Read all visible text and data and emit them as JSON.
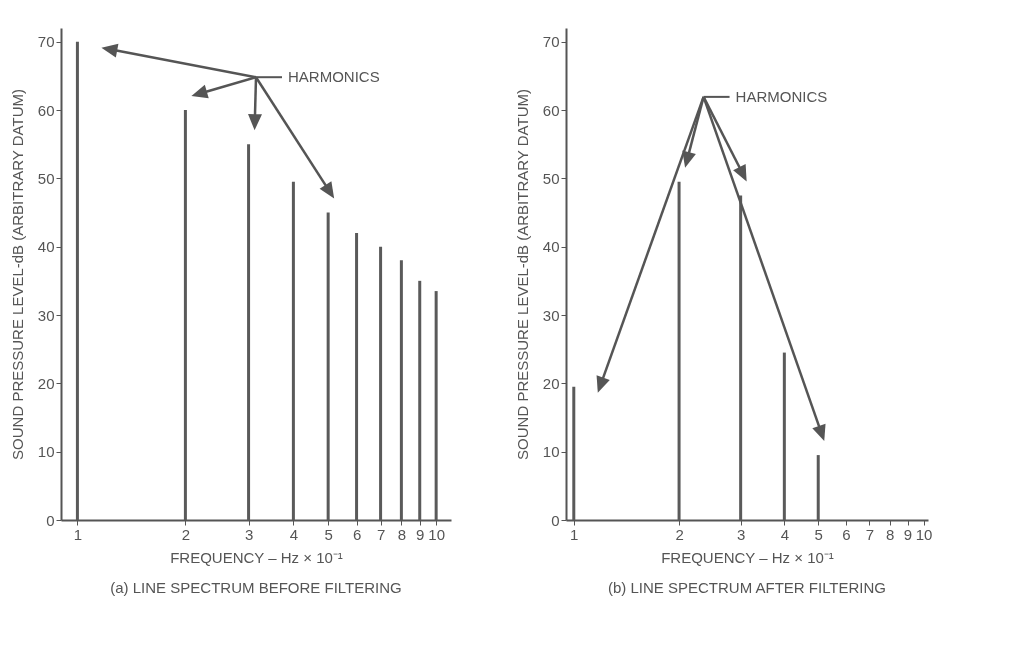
{
  "chart_data": [
    {
      "type": "bar",
      "title": "(a) LINE SPECTRUM BEFORE FILTERING",
      "xlabel": "FREQUENCY – Hz × 10⁻¹",
      "ylabel": "SOUND PRESSURE LEVEL-dB (ARBITRARY DATUM)",
      "color": "#5a5a5a",
      "log": "x",
      "x": [
        1,
        2,
        3,
        4,
        5,
        6,
        7,
        8,
        9,
        10
      ],
      "values": [
        70,
        60,
        55,
        49.5,
        45,
        42,
        40,
        38,
        35,
        33.5
      ],
      "xlim": [
        0.9,
        11
      ],
      "xticks": [
        1,
        2,
        3,
        4,
        5,
        6,
        7,
        8,
        9,
        10
      ],
      "ylim": [
        0,
        72
      ],
      "yticks": [
        0,
        10,
        20,
        30,
        40,
        50,
        60,
        70
      ],
      "annotations": [
        "HARMONICS"
      ]
    },
    {
      "type": "bar",
      "title": "(b) LINE SPECTRUM AFTER FILTERING",
      "xlabel": "FREQUENCY – Hz × 10⁻¹",
      "ylabel": "SOUND PRESSURE LEVEL-dB (ARBITRARY DATUM)",
      "color": "#5a5a5a",
      "log": "x",
      "x": [
        1,
        2,
        3,
        4,
        5
      ],
      "values": [
        19.5,
        49.5,
        47.5,
        24.5,
        9.5
      ],
      "xlim": [
        0.95,
        10.3
      ],
      "xticks": [
        1,
        2,
        3,
        4,
        5,
        6,
        7,
        8,
        9,
        10
      ],
      "ylim": [
        0,
        72
      ],
      "yticks": [
        0,
        10,
        20,
        30,
        40,
        50,
        60,
        70
      ],
      "annotations": [
        "HARMONICS"
      ]
    }
  ]
}
